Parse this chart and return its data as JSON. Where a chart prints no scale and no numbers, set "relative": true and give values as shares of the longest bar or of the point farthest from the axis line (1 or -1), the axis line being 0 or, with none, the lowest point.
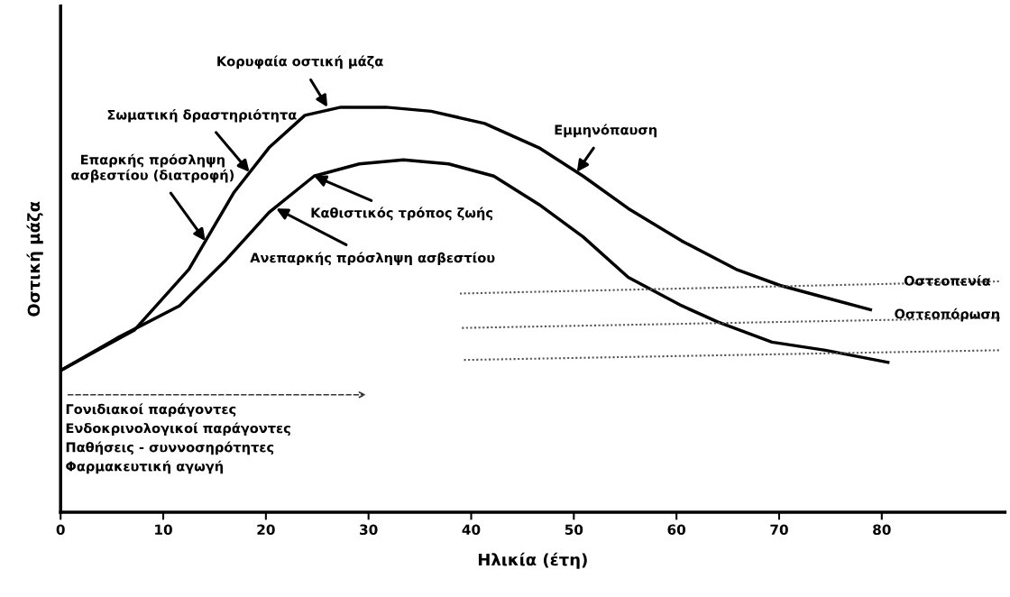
{
  "chart_data": {
    "type": "line",
    "relative": true,
    "xlabel": "Ηλικία (έτη)",
    "ylabel": "Οστική μάζα",
    "xlim": [
      0,
      92
    ],
    "xticks": [
      0,
      10,
      20,
      30,
      40,
      50,
      60,
      70,
      80
    ],
    "tick_labels": "x",
    "grid": false,
    "marker": "none",
    "series": [
      {
        "color": "#000000",
        "line_style": "solid",
        "x": [
          0,
          2.9,
          7.2,
          12.5,
          16.9,
          20.3,
          23.8,
          27.3,
          31.7,
          36.1,
          41.3,
          46.6,
          50.9,
          55.3,
          60.5,
          65.8,
          70.1,
          74.5,
          78.9
        ],
        "values": [
          0.35,
          0.39,
          0.45,
          0.6,
          0.79,
          0.9,
          0.98,
          1.0,
          1.0,
          0.99,
          0.96,
          0.9,
          0.83,
          0.75,
          0.67,
          0.6,
          0.56,
          0.53,
          0.5
        ]
      },
      {
        "color": "#000000",
        "line_style": "solid",
        "x": [
          0,
          5.5,
          11.6,
          16.0,
          20.3,
          24.7,
          29.1,
          33.4,
          37.8,
          42.2,
          46.6,
          50.9,
          55.3,
          60.5,
          64.0,
          69.3,
          74.5,
          80.6
        ],
        "values": [
          0.35,
          0.43,
          0.51,
          0.62,
          0.74,
          0.83,
          0.86,
          0.87,
          0.86,
          0.83,
          0.76,
          0.68,
          0.58,
          0.51,
          0.47,
          0.42,
          0.4,
          0.37
        ]
      },
      {
        "color": "#555555",
        "line_style": "dotted",
        "x": [
          38.9,
          91.5
        ],
        "values": [
          0.54,
          0.57
        ]
      },
      {
        "color": "#555555",
        "line_style": "dotted",
        "x": [
          39.1,
          91.5
        ],
        "values": [
          0.455,
          0.48
        ]
      },
      {
        "color": "#555555",
        "line_style": "dotted",
        "x": [
          39.3,
          91.5
        ],
        "values": [
          0.376,
          0.4
        ]
      }
    ],
    "annotations": [
      {
        "text": "Κορυφαία οστική μάζα",
        "x": 26,
        "y": 1.0
      },
      {
        "text": "Σωματική δραστηριότητα",
        "x": 18.4,
        "y": 0.84
      },
      {
        "text": "Επαρκής πρόσληψη\nασβεστίου (διατροφή)",
        "x": 14.1,
        "y": 0.67
      },
      {
        "text": "Εμμηνόπαυση",
        "x": 50.3,
        "y": 0.84
      },
      {
        "text": "Καθιστικός τρόπος ζωής",
        "x": 24.7,
        "y": 0.83
      },
      {
        "text": "Ανεπαρκής πρόσληψη ασβεστίου",
        "x": 21.0,
        "y": 0.75
      },
      "Οστεοπενία",
      "Οστεοπόρωση",
      "Γονιδιακοί παράγοντες\nΕνδοκρινολογικοί παράγοντες\nΠαθήσεις - συννοσηρότητες\nΦαρμακευτική αγωγή"
    ]
  }
}
